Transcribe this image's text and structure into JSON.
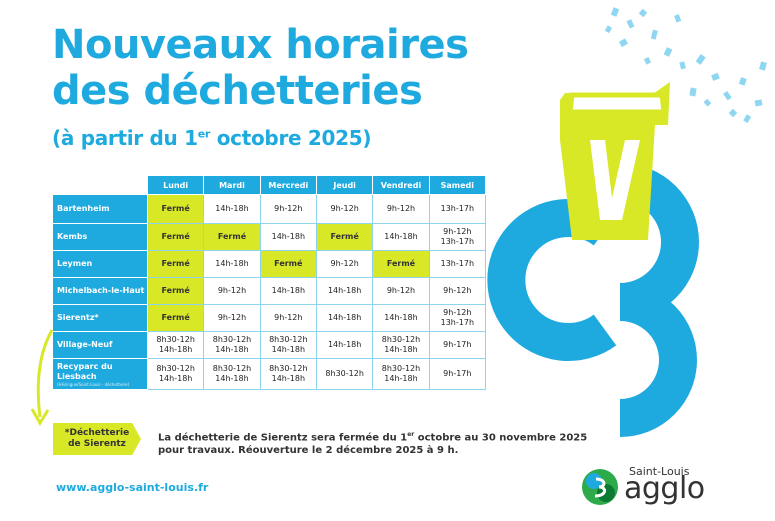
{
  "title_line1": "Nouveaux horaires",
  "title_line2": "des déchetteries",
  "subtitle_pre": "(à partir du 1",
  "subtitle_sup": "er",
  "subtitle_post": " octobre 2025)",
  "days": [
    "Lundi",
    "Mardi",
    "Mercredi",
    "Jeudi",
    "Vendredi",
    "Samedi"
  ],
  "rows": [
    {
      "place": "Bartenheim",
      "sub": "",
      "cells": [
        "Fermé",
        "14h-18h",
        "9h-12h",
        "9h-12h",
        "9h-12h",
        "13h-17h"
      ]
    },
    {
      "place": "Kembs",
      "sub": "",
      "cells": [
        "Fermé",
        "Fermé",
        "14h-18h",
        "Fermé",
        "14h-18h",
        "9h-12h\n13h-17h"
      ]
    },
    {
      "place": "Leymen",
      "sub": "",
      "cells": [
        "Fermé",
        "14h-18h",
        "Fermé",
        "9h-12h",
        "Fermé",
        "13h-17h"
      ]
    },
    {
      "place": "Michelbach-le-Haut",
      "sub": "",
      "cells": [
        "Fermé",
        "9h-12h",
        "14h-18h",
        "14h-18h",
        "9h-12h",
        "9h-12h"
      ]
    },
    {
      "place": "Sierentz*",
      "sub": "",
      "cells": [
        "Fermé",
        "9h-12h",
        "9h-12h",
        "14h-18h",
        "14h-18h",
        "9h-12h\n13h-17h"
      ]
    },
    {
      "place": "Village-Neuf",
      "sub": "",
      "cells": [
        "8h30-12h\n14h-18h",
        "8h30-12h\n14h-18h",
        "8h30-12h\n14h-18h",
        "14h-18h",
        "8h30-12h\n14h-18h",
        "9h-17h"
      ]
    },
    {
      "place": "Recyparc du Liesbach",
      "sub": "(Hésingue/Saint-Louis - déchetterie)",
      "cells": [
        "8h30-12h\n14h-18h",
        "8h30-12h\n14h-18h",
        "8h30-12h\n14h-18h",
        "8h30-12h",
        "8h30-12h\n14h-18h",
        "9h-17h"
      ]
    }
  ],
  "closed_label": "Fermé",
  "note_tag_line1": "*Déchetterie",
  "note_tag_line2": "de Sierentz",
  "note_pre": "La déchetterie de Sierentz sera fermée du 1",
  "note_sup": "er",
  "note_post": " octobre au 30 novembre 2025 pour travaux. Réouverture le 2 décembre 2025 à 9 h.",
  "website": "www.agglo-saint-louis.fr",
  "logo_small": "Saint-Louis",
  "logo_big": "agglo",
  "colors": {
    "blue": "#1eaadf",
    "lime": "#d8e827",
    "cell_border": "#8ed4ef"
  }
}
